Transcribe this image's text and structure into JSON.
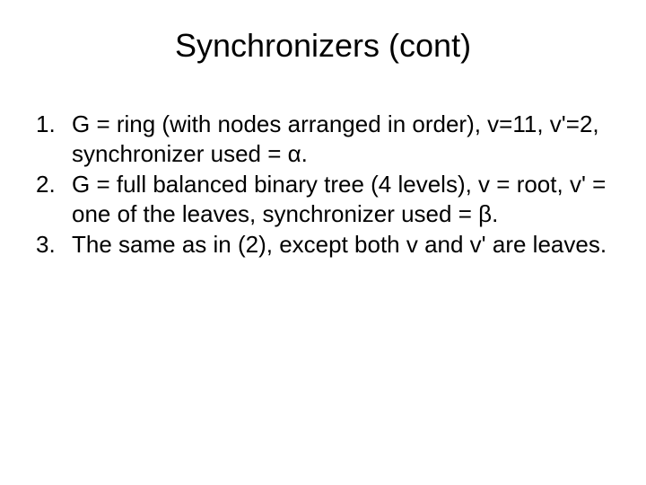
{
  "title": "Synchronizers (cont)",
  "items": [
    {
      "num": "1.",
      "text": "G = ring (with nodes arranged in order), v=11, v'=2, synchronizer used = α."
    },
    {
      "num": "2.",
      "text": "G = full balanced binary tree (4 levels), v = root, v' = one of the leaves, synchronizer used = β."
    },
    {
      "num": "3.",
      "text": "The same as in (2), except both v and v' are leaves."
    }
  ],
  "colors": {
    "background": "#ffffff",
    "text": "#000000"
  },
  "typography": {
    "title_fontsize_pt": 27,
    "body_fontsize_pt": 20,
    "font_family": "Arial"
  }
}
